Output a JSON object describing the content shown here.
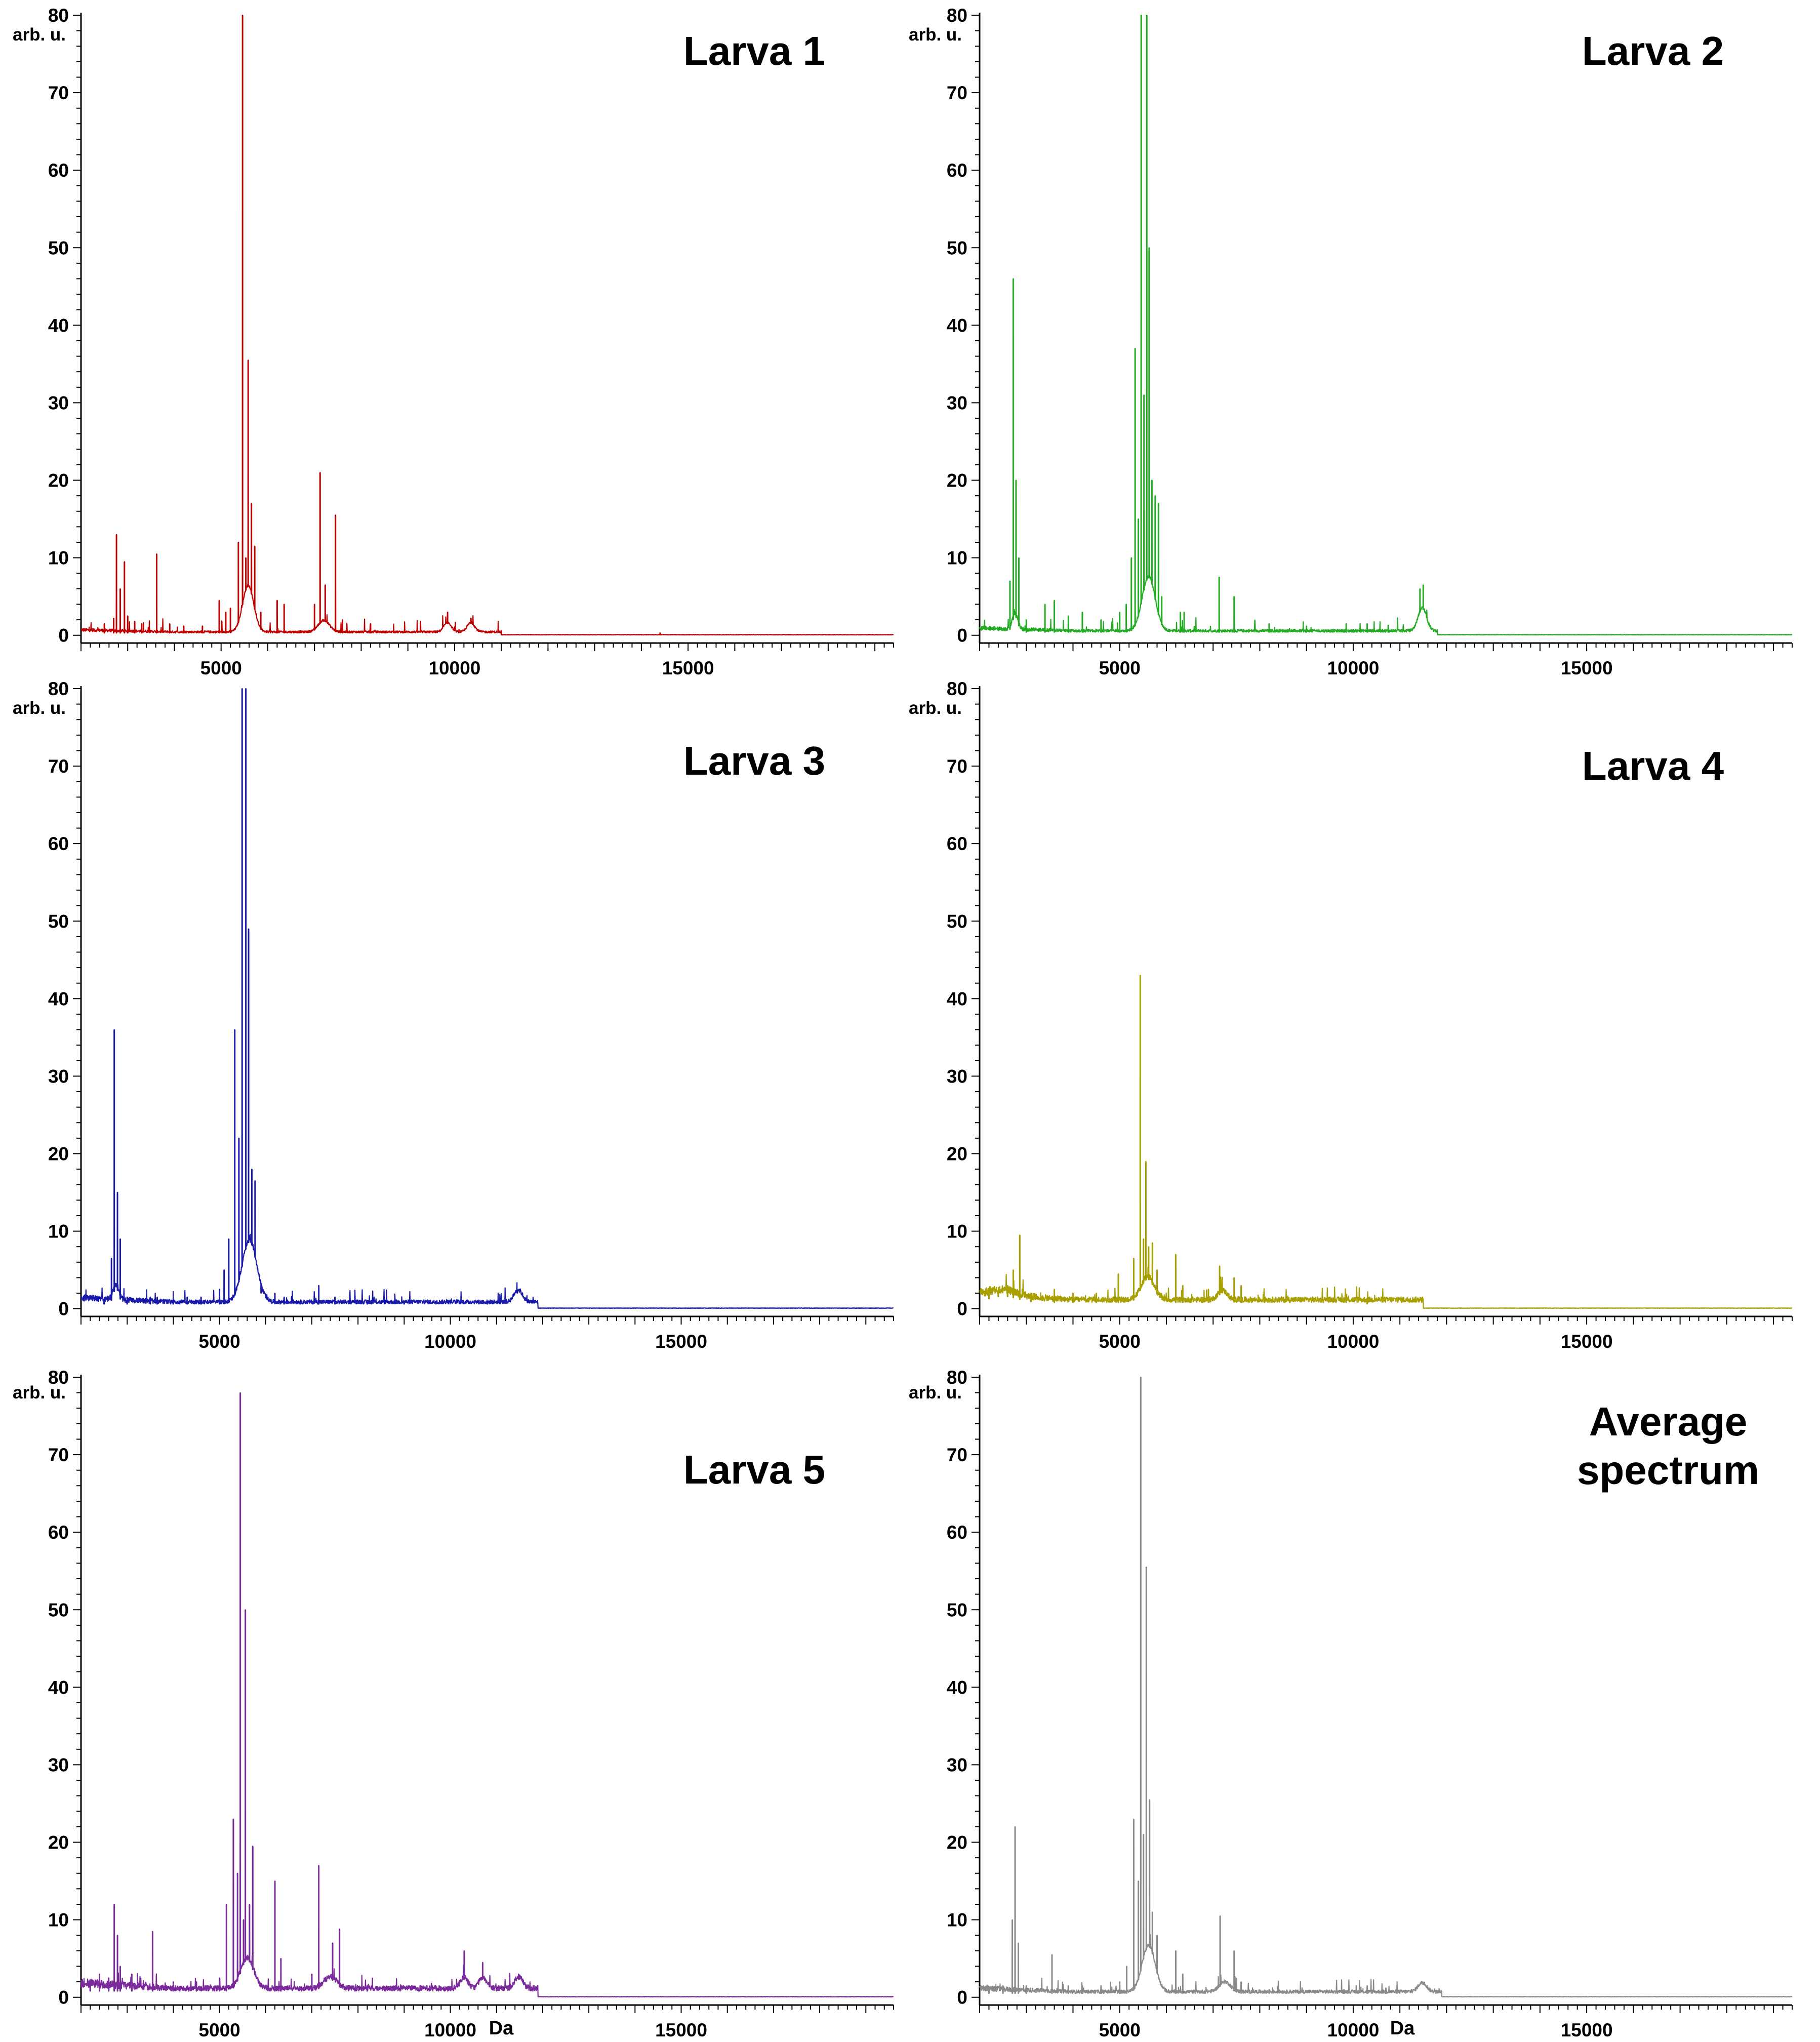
{
  "chart_data": [
    {
      "type": "line",
      "title": "Larva 1",
      "ylabel": "arb. u.",
      "xlabel": "",
      "color": "#c00000",
      "xlim": [
        2000,
        19400
      ],
      "ylim": [
        -1,
        80
      ],
      "x_ticks": [
        5000,
        10000,
        15000
      ],
      "y_ticks": [
        0,
        10,
        20,
        30,
        40,
        50,
        60,
        70,
        80
      ],
      "baseline": 0.3,
      "baseline_end": 11000,
      "peaks": [
        [
          2500,
          1.5
        ],
        [
          2700,
          2.2
        ],
        [
          2760,
          13
        ],
        [
          2840,
          6
        ],
        [
          2930,
          9.5
        ],
        [
          3000,
          2.5
        ],
        [
          3150,
          1.8
        ],
        [
          3300,
          1.5
        ],
        [
          3620,
          10.5
        ],
        [
          3900,
          1.5
        ],
        [
          4200,
          1.2
        ],
        [
          4600,
          1.2
        ],
        [
          4960,
          4.5
        ],
        [
          5100,
          3
        ],
        [
          5200,
          3.5
        ],
        [
          5370,
          12
        ],
        [
          5460,
          80
        ],
        [
          5530,
          10
        ],
        [
          5580,
          35.5
        ],
        [
          5650,
          17
        ],
        [
          5720,
          11.5
        ],
        [
          5850,
          3
        ],
        [
          6200,
          4.5
        ],
        [
          6350,
          4
        ],
        [
          7000,
          4
        ],
        [
          7120,
          21
        ],
        [
          7230,
          6.5
        ],
        [
          7450,
          15.5
        ],
        [
          7600,
          2
        ],
        [
          8200,
          1.5
        ],
        [
          9850,
          3
        ],
        [
          10350,
          2.2
        ],
        [
          11000,
          0.6
        ],
        [
          14400,
          0.3
        ]
      ],
      "humps": [
        [
          5580,
          6,
          120
        ],
        [
          7200,
          1.5,
          120
        ],
        [
          9850,
          1.2,
          80
        ],
        [
          10350,
          1.2,
          80
        ]
      ]
    },
    {
      "type": "line",
      "title": "Larva 2",
      "ylabel": "arb. u.",
      "xlabel": "",
      "color": "#22aa22",
      "xlim": [
        2000,
        19400
      ],
      "ylim": [
        -1,
        80
      ],
      "x_ticks": [
        5000,
        10000,
        15000
      ],
      "y_ticks": [
        0,
        10,
        20,
        30,
        40,
        50,
        60,
        70,
        80
      ],
      "baseline": 0.4,
      "baseline_end": 11800,
      "peaks": [
        [
          2650,
          7
        ],
        [
          2720,
          46
        ],
        [
          2780,
          20
        ],
        [
          2840,
          10
        ],
        [
          3000,
          2
        ],
        [
          3400,
          4
        ],
        [
          3600,
          4.5
        ],
        [
          3900,
          2.5
        ],
        [
          4200,
          3
        ],
        [
          4600,
          2
        ],
        [
          5000,
          3
        ],
        [
          5140,
          4
        ],
        [
          5250,
          10
        ],
        [
          5330,
          37
        ],
        [
          5400,
          15
        ],
        [
          5460,
          80
        ],
        [
          5520,
          31
        ],
        [
          5580,
          80
        ],
        [
          5630,
          50
        ],
        [
          5690,
          20
        ],
        [
          5760,
          18
        ],
        [
          5830,
          17
        ],
        [
          5900,
          5
        ],
        [
          6300,
          3
        ],
        [
          6380,
          3
        ],
        [
          7130,
          7.5
        ],
        [
          7450,
          5
        ],
        [
          8200,
          1.5
        ],
        [
          9000,
          1.2
        ],
        [
          9850,
          1.5
        ],
        [
          10300,
          1.5
        ],
        [
          10750,
          1.3
        ],
        [
          11430,
          6
        ],
        [
          11500,
          6.5
        ]
      ],
      "humps": [
        [
          5620,
          7,
          140
        ],
        [
          11480,
          3,
          90
        ],
        [
          2760,
          2,
          60
        ]
      ]
    },
    {
      "type": "line",
      "title": "Larva 3",
      "ylabel": "arb. u.",
      "xlabel": "",
      "color": "#1a1aaa",
      "xlim": [
        2000,
        19600
      ],
      "ylim": [
        -1,
        80
      ],
      "x_ticks": [
        5000,
        10000,
        15000
      ],
      "y_ticks": [
        0,
        10,
        20,
        30,
        40,
        50,
        60,
        70,
        80
      ],
      "baseline": 0.6,
      "baseline_end": 11900,
      "peaks": [
        [
          2500,
          1
        ],
        [
          2660,
          6.5
        ],
        [
          2720,
          36
        ],
        [
          2790,
          15
        ],
        [
          2850,
          9
        ],
        [
          3000,
          1.5
        ],
        [
          3500,
          1.5
        ],
        [
          3650,
          1.5
        ],
        [
          4000,
          1.2
        ],
        [
          4300,
          1.5
        ],
        [
          4600,
          1.5
        ],
        [
          5000,
          2.5
        ],
        [
          5100,
          5
        ],
        [
          5200,
          9
        ],
        [
          5330,
          36
        ],
        [
          5420,
          22
        ],
        [
          5490,
          80
        ],
        [
          5570,
          80
        ],
        [
          5630,
          49
        ],
        [
          5700,
          18
        ],
        [
          5770,
          16.5
        ],
        [
          5900,
          2
        ],
        [
          6200,
          2
        ],
        [
          6400,
          1.5
        ],
        [
          7150,
          3
        ],
        [
          7500,
          1.5
        ],
        [
          8200,
          1
        ],
        [
          9000,
          1
        ],
        [
          10800,
          1
        ],
        [
          11450,
          2
        ]
      ],
      "humps": [
        [
          5650,
          8,
          160
        ],
        [
          11470,
          1.6,
          90
        ],
        [
          2760,
          2,
          60
        ]
      ]
    },
    {
      "type": "line",
      "title": "Larva 4",
      "ylabel": "arb. u.",
      "xlabel": "",
      "color": "#a8a000",
      "xlim": [
        2000,
        19400
      ],
      "ylim": [
        -1,
        80
      ],
      "x_ticks": [
        5000,
        10000,
        15000
      ],
      "y_ticks": [
        0,
        10,
        20,
        30,
        40,
        50,
        60,
        70,
        80
      ],
      "baseline": 0.8,
      "baseline_end": 11500,
      "peaks": [
        [
          2200,
          2
        ],
        [
          2400,
          2
        ],
        [
          2600,
          3
        ],
        [
          2720,
          5
        ],
        [
          2860,
          9.5
        ],
        [
          3100,
          2
        ],
        [
          3600,
          2.5
        ],
        [
          4000,
          2
        ],
        [
          4500,
          2
        ],
        [
          4970,
          4.5
        ],
        [
          5300,
          6.5
        ],
        [
          5440,
          43
        ],
        [
          5510,
          9
        ],
        [
          5560,
          19
        ],
        [
          5620,
          8
        ],
        [
          5700,
          8.5
        ],
        [
          5800,
          5
        ],
        [
          6200,
          7
        ],
        [
          6350,
          3
        ],
        [
          6900,
          2.5
        ],
        [
          7140,
          5.5
        ],
        [
          7450,
          4
        ],
        [
          7600,
          3
        ],
        [
          8100,
          1.2
        ],
        [
          9850,
          0.8
        ],
        [
          10300,
          0.6
        ]
      ],
      "humps": [
        [
          5600,
          3,
          140
        ],
        [
          7200,
          1.2,
          100
        ],
        [
          2500,
          0.8,
          300
        ]
      ]
    },
    {
      "type": "line",
      "title": "Larva 5",
      "ylabel": "arb. u.",
      "xlabel": "Da",
      "color": "#7a2a9a",
      "xlim": [
        2000,
        19600
      ],
      "ylim": [
        -1,
        80
      ],
      "x_ticks": [
        5000,
        10000,
        15000
      ],
      "y_ticks": [
        0,
        10,
        20,
        30,
        40,
        50,
        60,
        70,
        80
      ],
      "baseline": 0.8,
      "baseline_end": 11900,
      "peaks": [
        [
          2200,
          2
        ],
        [
          2400,
          3
        ],
        [
          2600,
          2.5
        ],
        [
          2720,
          12
        ],
        [
          2790,
          8
        ],
        [
          2850,
          4
        ],
        [
          3100,
          3
        ],
        [
          3550,
          8.5
        ],
        [
          4000,
          2
        ],
        [
          4500,
          2
        ],
        [
          5000,
          2.5
        ],
        [
          5150,
          12
        ],
        [
          5300,
          23
        ],
        [
          5390,
          16
        ],
        [
          5450,
          78
        ],
        [
          5520,
          10
        ],
        [
          5560,
          50
        ],
        [
          5650,
          12
        ],
        [
          5720,
          19.5
        ],
        [
          6200,
          15
        ],
        [
          6330,
          5
        ],
        [
          7000,
          3
        ],
        [
          7150,
          17
        ],
        [
          7450,
          7
        ],
        [
          7600,
          8.8
        ],
        [
          8200,
          1.5
        ],
        [
          10300,
          6
        ],
        [
          10700,
          4.5
        ],
        [
          11480,
          3
        ]
      ],
      "humps": [
        [
          5600,
          4,
          140
        ],
        [
          7400,
          1.5,
          140
        ],
        [
          10300,
          1.5,
          80
        ],
        [
          10700,
          1.5,
          80
        ],
        [
          11480,
          1.5,
          90
        ]
      ]
    },
    {
      "type": "line",
      "title": "Average spectrum",
      "ylabel": "arb. u.",
      "xlabel": "Da",
      "color": "#8a8a8a",
      "xlim": [
        2000,
        19400
      ],
      "ylim": [
        -1,
        80
      ],
      "x_ticks": [
        5000,
        10000,
        15000
      ],
      "y_ticks": [
        0,
        10,
        20,
        30,
        40,
        50,
        60,
        70,
        80
      ],
      "baseline": 0.5,
      "baseline_end": 11900,
      "peaks": [
        [
          2200,
          1
        ],
        [
          2500,
          1.5
        ],
        [
          2700,
          10
        ],
        [
          2760,
          22
        ],
        [
          2830,
          7
        ],
        [
          3000,
          1.5
        ],
        [
          3550,
          5.5
        ],
        [
          3900,
          1.5
        ],
        [
          4200,
          1.5
        ],
        [
          4600,
          1.5
        ],
        [
          5000,
          2
        ],
        [
          5150,
          4
        ],
        [
          5300,
          23
        ],
        [
          5400,
          15
        ],
        [
          5450,
          80
        ],
        [
          5510,
          21
        ],
        [
          5570,
          55.5
        ],
        [
          5640,
          25.5
        ],
        [
          5700,
          11
        ],
        [
          5800,
          8
        ],
        [
          6200,
          6
        ],
        [
          6350,
          3
        ],
        [
          7150,
          10.5
        ],
        [
          7450,
          6
        ],
        [
          7600,
          2
        ],
        [
          8200,
          1
        ],
        [
          9800,
          1
        ],
        [
          10300,
          1.5
        ],
        [
          10700,
          1.2
        ],
        [
          11480,
          2
        ]
      ],
      "humps": [
        [
          5620,
          6,
          140
        ],
        [
          7250,
          1.3,
          120
        ],
        [
          11480,
          1.2,
          90
        ]
      ]
    }
  ]
}
